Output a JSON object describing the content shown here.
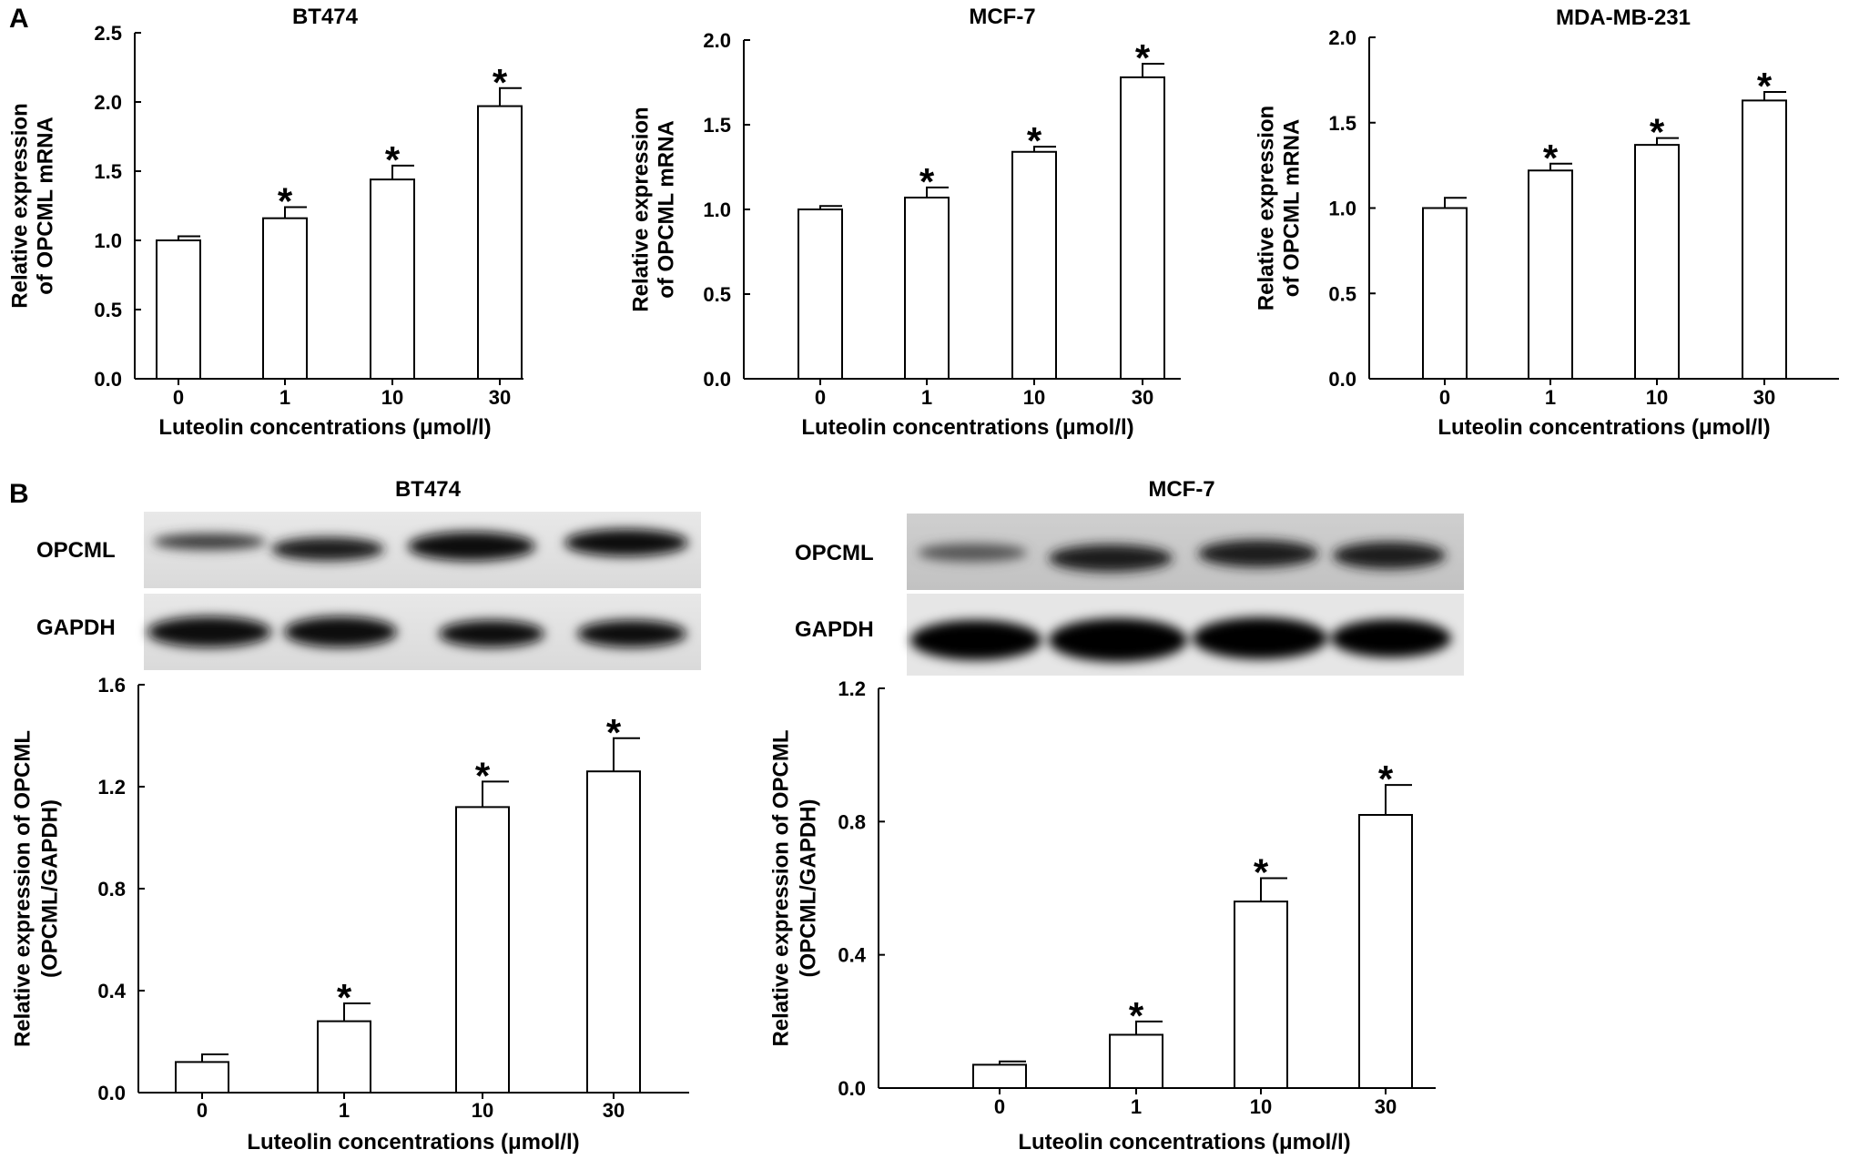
{
  "panels": [
    "A",
    "B"
  ],
  "blots": [
    {
      "title": "BT474",
      "rows": [
        "OPCML",
        "GAPDH"
      ]
    },
    {
      "title": "MCF-7",
      "rows": [
        "OPCML",
        "GAPDH"
      ]
    }
  ],
  "chart_data": [
    {
      "type": "bar",
      "title": "BT474",
      "categories": [
        "0",
        "1",
        "10",
        "30"
      ],
      "values": [
        1.0,
        1.16,
        1.44,
        1.97
      ],
      "errors": [
        0.03,
        0.08,
        0.1,
        0.13
      ],
      "significant": [
        false,
        true,
        true,
        true
      ],
      "marker": "*",
      "xlabel": "Luteolin concentrations (μmol/l)",
      "ylabel": [
        "Relative expression",
        "of OPCML mRNA"
      ],
      "ylim": [
        0,
        2.5
      ],
      "yticks": [
        "0.0",
        "0.5",
        "1.0",
        "1.5",
        "2.0",
        "2.5"
      ]
    },
    {
      "type": "bar",
      "title": "MCF-7",
      "categories": [
        "0",
        "1",
        "10",
        "30"
      ],
      "values": [
        1.0,
        1.07,
        1.34,
        1.78
      ],
      "errors": [
        0.02,
        0.06,
        0.03,
        0.08
      ],
      "significant": [
        false,
        true,
        true,
        true
      ],
      "marker": "*",
      "xlabel": "Luteolin concentrations (μmol/l)",
      "ylabel": [
        "Relative expression",
        "of OPCML mRNA"
      ],
      "ylim": [
        0,
        2.0
      ],
      "yticks": [
        "0.0",
        "0.5",
        "1.0",
        "1.5",
        "2.0"
      ]
    },
    {
      "type": "bar",
      "title": "MDA-MB-231",
      "categories": [
        "0",
        "1",
        "10",
        "30"
      ],
      "values": [
        1.0,
        1.22,
        1.37,
        1.63
      ],
      "errors": [
        0.06,
        0.04,
        0.04,
        0.05
      ],
      "significant": [
        false,
        true,
        true,
        true
      ],
      "marker": "*",
      "xlabel": "Luteolin concentrations (μmol/l)",
      "ylabel": [
        "Relative expression",
        "of OPCML mRNA"
      ],
      "ylim": [
        0,
        2.0
      ],
      "yticks": [
        "0.0",
        "0.5",
        "1.0",
        "1.5",
        "2.0"
      ]
    },
    {
      "type": "bar",
      "categories": [
        "0",
        "1",
        "10",
        "30"
      ],
      "values": [
        0.12,
        0.28,
        1.12,
        1.26
      ],
      "errors": [
        0.03,
        0.07,
        0.1,
        0.13
      ],
      "significant": [
        false,
        true,
        true,
        true
      ],
      "marker": "*",
      "xlabel": "Luteolin concentrations (μmol/l)",
      "ylabel": [
        "Relative expression of OPCML",
        "(OPCML/GAPDH)"
      ],
      "ylim": [
        0,
        1.6
      ],
      "yticks": [
        "0.0",
        "0.4",
        "0.8",
        "1.2",
        "1.6"
      ]
    },
    {
      "type": "bar",
      "categories": [
        "0",
        "1",
        "10",
        "30"
      ],
      "values": [
        0.07,
        0.16,
        0.56,
        0.82
      ],
      "errors": [
        0.01,
        0.04,
        0.07,
        0.09
      ],
      "significant": [
        false,
        true,
        true,
        true
      ],
      "marker": "*",
      "xlabel": "Luteolin concentrations (μmol/l)",
      "ylabel": [
        "Relative expression of OPCML",
        "(OPCML/GAPDH)"
      ],
      "ylim": [
        0,
        1.2
      ],
      "yticks": [
        "0.0",
        "0.4",
        "0.8",
        "1.2"
      ]
    }
  ]
}
